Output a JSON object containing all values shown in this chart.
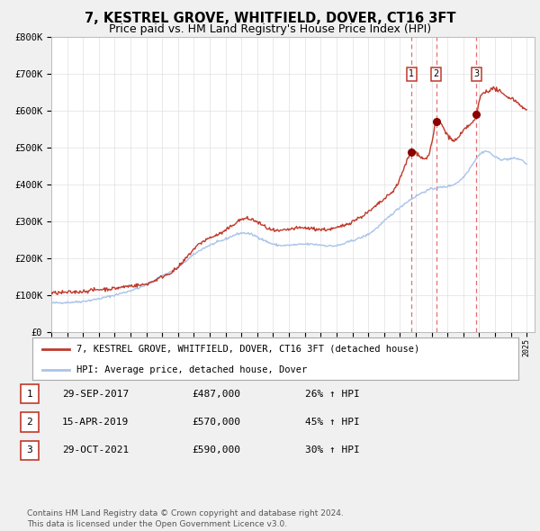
{
  "title": "7, KESTREL GROVE, WHITFIELD, DOVER, CT16 3FT",
  "subtitle": "Price paid vs. HM Land Registry's House Price Index (HPI)",
  "ylim": [
    0,
    800000
  ],
  "yticks": [
    0,
    100000,
    200000,
    300000,
    400000,
    500000,
    600000,
    700000,
    800000
  ],
  "ytick_labels": [
    "£0",
    "£100K",
    "£200K",
    "£300K",
    "£400K",
    "£500K",
    "£600K",
    "£700K",
    "£800K"
  ],
  "hpi_color": "#aac4e8",
  "price_color": "#c0392b",
  "marker_color": "#8b0000",
  "vline_color": "#e05555",
  "background_color": "#f0f0f0",
  "plot_bg_color": "#ffffff",
  "sale_dates": [
    2017.747,
    2019.286,
    2021.831
  ],
  "sale_prices": [
    487000,
    570000,
    590000
  ],
  "sale_labels": [
    "1",
    "2",
    "3"
  ],
  "legend_price_label": "7, KESTREL GROVE, WHITFIELD, DOVER, CT16 3FT (detached house)",
  "legend_hpi_label": "HPI: Average price, detached house, Dover",
  "table_rows": [
    [
      "1",
      "29-SEP-2017",
      "£487,000",
      "26% ↑ HPI"
    ],
    [
      "2",
      "15-APR-2019",
      "£570,000",
      "45% ↑ HPI"
    ],
    [
      "3",
      "29-OCT-2021",
      "£590,000",
      "30% ↑ HPI"
    ]
  ],
  "footer": "Contains HM Land Registry data © Crown copyright and database right 2024.\nThis data is licensed under the Open Government Licence v3.0.",
  "title_fontsize": 10.5,
  "subtitle_fontsize": 9,
  "axis_fontsize": 7.5,
  "legend_fontsize": 7.5,
  "table_fontsize": 8,
  "footer_fontsize": 6.5
}
